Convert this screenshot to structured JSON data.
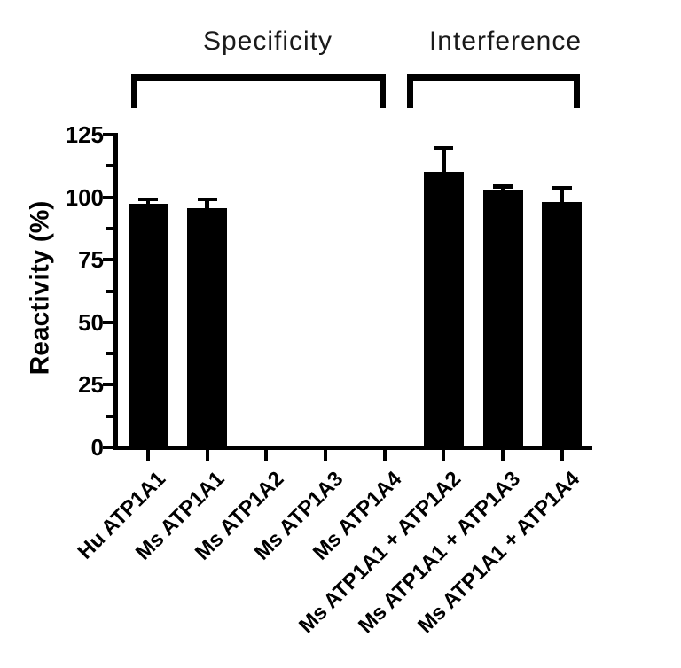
{
  "figure": {
    "background": "#ffffff"
  },
  "chart_data": {
    "type": "bar",
    "ylabel": "Reactivity (%)",
    "ylim": [
      0,
      125
    ],
    "yticks": [
      0,
      25,
      50,
      75,
      100,
      125
    ],
    "yticks_minor": [
      12.5,
      37.5,
      62.5,
      87.5,
      112.5
    ],
    "categories": [
      "Hu ATP1A1",
      "Ms ATP1A1",
      "Ms ATP1A2",
      "Ms ATP1A3",
      "Ms ATP1A4",
      "Ms ATP1A1 + ATP1A2",
      "Ms ATP1A1 + ATP1A3",
      "Ms ATP1A1 + ATP1A4"
    ],
    "values": [
      97.5,
      95.5,
      0,
      0,
      0,
      110,
      103,
      98
    ],
    "errors_plus": [
      2.5,
      4.5,
      0,
      0,
      0,
      10.5,
      2,
      6.5
    ],
    "groups": [
      {
        "label": "Specificity",
        "start": 0,
        "end": 4
      },
      {
        "label": "Interference",
        "start": 5,
        "end": 7
      }
    ],
    "bar_color": "#000000",
    "axis_color": "#000000",
    "error_bar_style": "upper-only",
    "x_tick_label_rotation_deg": -45,
    "grid": false
  }
}
